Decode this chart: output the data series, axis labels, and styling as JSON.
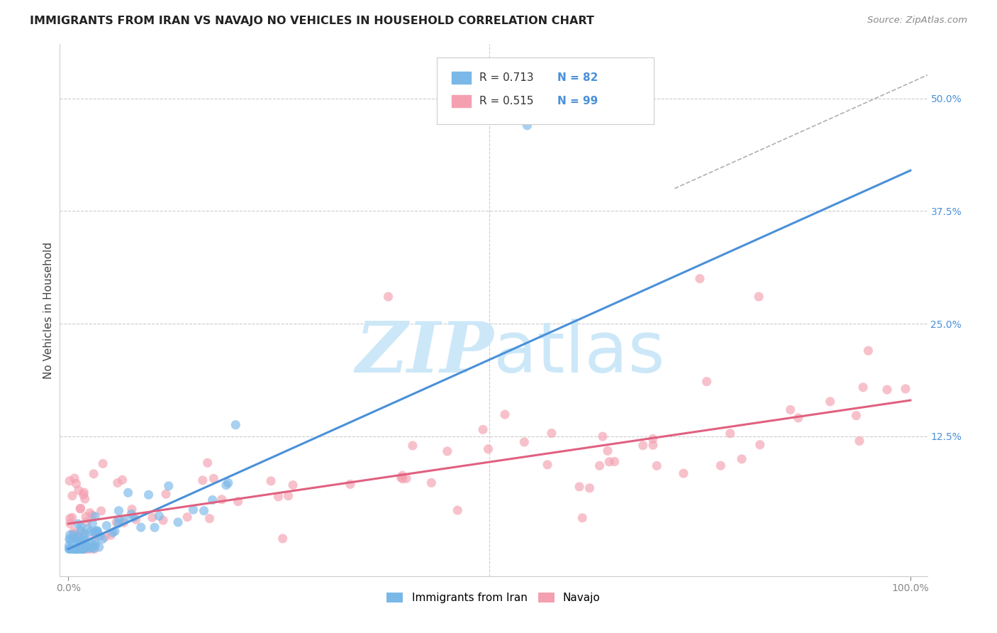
{
  "title": "IMMIGRANTS FROM IRAN VS NAVAJO NO VEHICLES IN HOUSEHOLD CORRELATION CHART",
  "source": "Source: ZipAtlas.com",
  "ylabel_label": "No Vehicles in Household",
  "right_yticks": [
    "50.0%",
    "37.5%",
    "25.0%",
    "12.5%"
  ],
  "right_ytick_vals": [
    0.5,
    0.375,
    0.25,
    0.125
  ],
  "xlim": [
    -0.01,
    1.02
  ],
  "ylim": [
    -0.03,
    0.56
  ],
  "blue_color": "#7ab8e8",
  "pink_color": "#f4a0b0",
  "line_blue": "#4a90d9",
  "line_pink": "#e06080",
  "dashed_line_color": "#b0b0b0",
  "watermark_color": "#cce8f8",
  "legend_label1": "Immigrants from Iran",
  "legend_label2": "Navajo",
  "blue_line_x": [
    0.0,
    1.0
  ],
  "blue_line_y": [
    0.0,
    0.42
  ],
  "pink_line_x": [
    0.0,
    1.0
  ],
  "pink_line_y": [
    0.028,
    0.165
  ],
  "dashed_line_x": [
    0.72,
    1.03
  ],
  "dashed_line_y": [
    0.4,
    0.53
  ]
}
